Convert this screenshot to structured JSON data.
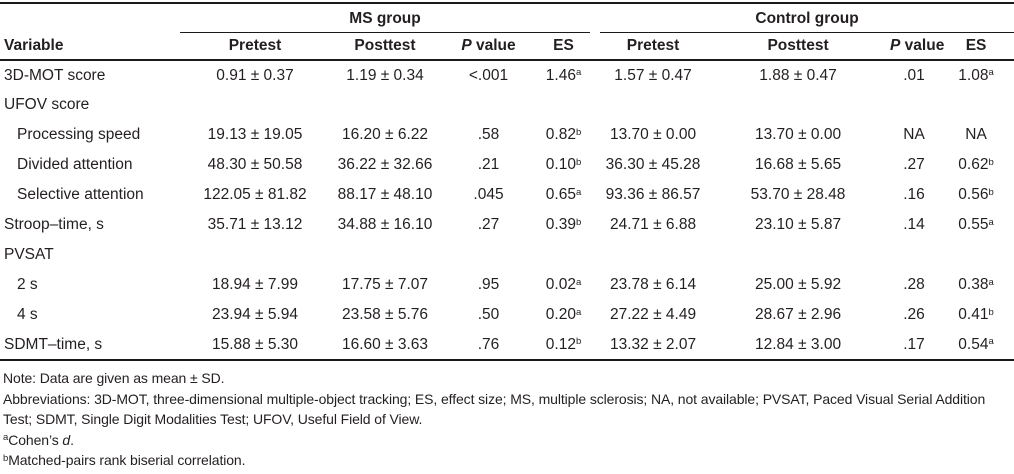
{
  "table": {
    "group_headers": {
      "ms": "MS group",
      "control": "Control group"
    },
    "column_headers": {
      "variable": "Variable",
      "pretest": "Pretest",
      "posttest": "Posttest",
      "p_italic": "P",
      "p_rest": " value",
      "es": "ES"
    },
    "rows": [
      {
        "label": "3D-MOT score",
        "indent": false,
        "cells": [
          {
            "t": "0.91 ± 0.37"
          },
          {
            "t": "1.19 ± 0.34"
          },
          {
            "t": "<.001"
          },
          {
            "t": "1.46",
            "sup": "a"
          },
          {
            "t": "1.57 ± 0.47"
          },
          {
            "t": "1.88 ± 0.47"
          },
          {
            "t": ".01"
          },
          {
            "t": "1.08",
            "sup": "a"
          }
        ]
      },
      {
        "label": "UFOV score",
        "indent": false,
        "cells": [
          null,
          null,
          null,
          null,
          null,
          null,
          null,
          null
        ]
      },
      {
        "label": "Processing speed",
        "indent": true,
        "cells": [
          {
            "t": "19.13 ± 19.05"
          },
          {
            "t": "16.20 ± 6.22"
          },
          {
            "t": ".58"
          },
          {
            "t": "0.82",
            "sup": "b"
          },
          {
            "t": "13.70 ± 0.00"
          },
          {
            "t": "13.70 ± 0.00"
          },
          {
            "t": "NA"
          },
          {
            "t": "NA"
          }
        ]
      },
      {
        "label": "Divided attention",
        "indent": true,
        "cells": [
          {
            "t": "48.30 ± 50.58"
          },
          {
            "t": "36.22 ± 32.66"
          },
          {
            "t": ".21"
          },
          {
            "t": "0.10",
            "sup": "b"
          },
          {
            "t": "36.30 ± 45.28"
          },
          {
            "t": "16.68 ± 5.65"
          },
          {
            "t": ".27"
          },
          {
            "t": "0.62",
            "sup": "b"
          }
        ]
      },
      {
        "label": "Selective attention",
        "indent": true,
        "cells": [
          {
            "t": "122.05 ± 81.82"
          },
          {
            "t": "88.17 ± 48.10"
          },
          {
            "t": ".045"
          },
          {
            "t": "0.65",
            "sup": "a"
          },
          {
            "t": "93.36 ± 86.57"
          },
          {
            "t": "53.70 ± 28.48"
          },
          {
            "t": ".16"
          },
          {
            "t": "0.56",
            "sup": "b"
          }
        ]
      },
      {
        "label": "Stroop–time, s",
        "indent": false,
        "cells": [
          {
            "t": "35.71 ± 13.12"
          },
          {
            "t": "34.88 ± 16.10"
          },
          {
            "t": ".27"
          },
          {
            "t": "0.39",
            "sup": "b"
          },
          {
            "t": "24.71 ± 6.88"
          },
          {
            "t": "23.10 ± 5.87"
          },
          {
            "t": ".14"
          },
          {
            "t": "0.55",
            "sup": "a"
          }
        ]
      },
      {
        "label": "PVSAT",
        "indent": false,
        "cells": [
          null,
          null,
          null,
          null,
          null,
          null,
          null,
          null
        ]
      },
      {
        "label": "2 s",
        "indent": true,
        "cells": [
          {
            "t": "18.94 ± 7.99"
          },
          {
            "t": "17.75 ± 7.07"
          },
          {
            "t": ".95"
          },
          {
            "t": "0.02",
            "sup": "a"
          },
          {
            "t": "23.78 ± 6.14"
          },
          {
            "t": "25.00 ± 5.92"
          },
          {
            "t": ".28"
          },
          {
            "t": "0.38",
            "sup": "a"
          }
        ]
      },
      {
        "label": "4 s",
        "indent": true,
        "cells": [
          {
            "t": "23.94 ± 5.94"
          },
          {
            "t": "23.58 ± 5.76"
          },
          {
            "t": ".50"
          },
          {
            "t": "0.20",
            "sup": "a"
          },
          {
            "t": "27.22 ± 4.49"
          },
          {
            "t": "28.67 ± 2.96"
          },
          {
            "t": ".26"
          },
          {
            "t": "0.41",
            "sup": "b"
          }
        ]
      },
      {
        "label": "SDMT–time, s",
        "indent": false,
        "cells": [
          {
            "t": "15.88 ± 5.30"
          },
          {
            "t": "16.60 ± 3.63"
          },
          {
            "t": ".76"
          },
          {
            "t": "0.12",
            "sup": "b"
          },
          {
            "t": "13.32 ± 2.07"
          },
          {
            "t": "12.84 ± 3.00"
          },
          {
            "t": ".17"
          },
          {
            "t": "0.54",
            "sup": "a"
          }
        ]
      }
    ]
  },
  "notes": {
    "note": "Note: Data are given as mean ± SD.",
    "abbreviations": "Abbreviations: 3D-MOT, three-dimensional multiple-object tracking; ES, effect size; MS, multiple sclerosis; NA, not available; PVSAT, Paced Visual Serial Addition Test; SDMT, Single Digit Modalities Test; UFOV, Useful Field of View.",
    "footnote_a": {
      "marker": "a",
      "text": "Cohen’s ",
      "italic": "d",
      "suffix": "."
    },
    "footnote_b": {
      "marker": "b",
      "text": "Matched-pairs rank biserial correlation."
    }
  },
  "colors": {
    "text": "#231f20",
    "rule": "#1a1a1a",
    "background": "#ffffff"
  }
}
